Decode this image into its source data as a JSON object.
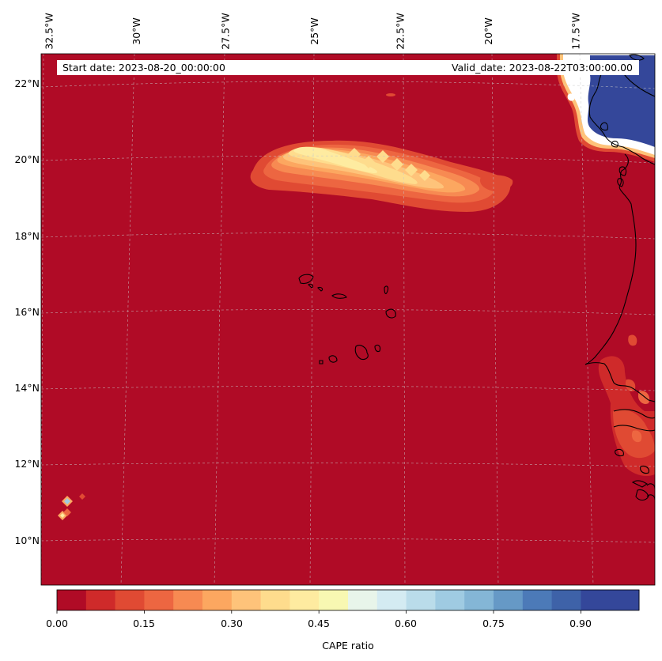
{
  "map": {
    "start_date_label": "Start date: 2023-08-20_00:00:00",
    "valid_date_label": "Valid_date: 2023-08-22T03:00:00.00",
    "lon_labels": [
      "32.5°W",
      "30°W",
      "27.5°W",
      "25°W",
      "22.5°W",
      "20°W",
      "17.5°W"
    ],
    "lat_labels": [
      "22°N",
      "20°N",
      "18°N",
      "16°N",
      "14°N",
      "12°N",
      "10°N"
    ],
    "background_color": "#b00b26",
    "coastline_color": "#000000",
    "gridlines": true
  },
  "colorbar": {
    "title": "CAPE ratio",
    "tick_labels": [
      "0.00",
      "0.15",
      "0.30",
      "0.45",
      "0.60",
      "0.75",
      "0.90"
    ],
    "levels": [
      0.0,
      0.05,
      0.1,
      0.15,
      0.2,
      0.25,
      0.3,
      0.35,
      0.4,
      0.45,
      0.5,
      0.55,
      0.6,
      0.65,
      0.7,
      0.75,
      0.8,
      0.85,
      0.9,
      0.95,
      1.0
    ],
    "colors": [
      "#b00b26",
      "#cf2a2a",
      "#e04a33",
      "#ed6641",
      "#f78a52",
      "#fca760",
      "#fec37a",
      "#fedc8d",
      "#feeba0",
      "#f8f8b2",
      "#e8f5ea",
      "#d4ebf2",
      "#badcea",
      "#9fcbe2",
      "#84b6d6",
      "#6699c6",
      "#4c7ab8",
      "#3e62a8",
      "#34479a"
    ]
  }
}
